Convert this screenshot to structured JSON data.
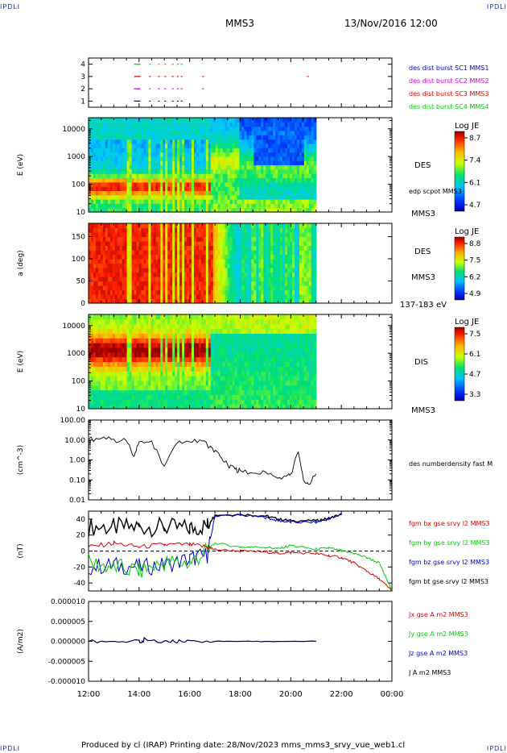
{
  "corner_marks": {
    "top_left": "IPDLI",
    "top_right": "IPDLI",
    "bottom_left": "IPDLI",
    "bottom_right": "IPDLI"
  },
  "header": {
    "spacecraft": "MMS3",
    "datetime": "13/Nov/2016 12:00"
  },
  "footer": {
    "text": "Produced by cl (IRAP)   Printing date: 28/Nov/2023   mms_mms3_srvy_vue_web1.cl"
  },
  "colors": {
    "blue": "#0000cc",
    "magenta": "#cc00cc",
    "red": "#dd0000",
    "green": "#00cc00",
    "black": "#000000"
  },
  "chart_data": [
    {
      "type": "scatter",
      "panel": "availability",
      "ylabel": "",
      "yticks": [
        "1",
        "2",
        "3",
        "4"
      ],
      "ylim": [
        0.5,
        4.5
      ],
      "legend": [
        {
          "name": "des dist burst SC1 MMS1",
          "color": "#0000cc"
        },
        {
          "name": "des dist burst SC2 MMS2",
          "color": "#cc00cc"
        },
        {
          "name": "des dist burst SC3 MMS3",
          "color": "#dd0000"
        },
        {
          "name": "des dist burst SC4 MMS4",
          "color": "#00cc00"
        }
      ],
      "series": [
        {
          "name": "des dist burst SC1 MMS1",
          "y": 1,
          "color": "#0000cc",
          "x": [
            13.8,
            13.95,
            14.4,
            14.75,
            15.0,
            15.3,
            15.5,
            15.65
          ]
        },
        {
          "name": "des dist burst SC2 MMS2",
          "y": 2,
          "color": "#cc00cc",
          "x": [
            13.8,
            13.95,
            14.4,
            14.75,
            15.0,
            15.3,
            15.5,
            15.65,
            16.5
          ]
        },
        {
          "name": "des dist burst SC3 MMS3",
          "y": 3,
          "color": "#dd0000",
          "x": [
            13.8,
            13.95,
            14.4,
            14.75,
            15.0,
            15.3,
            15.5,
            15.65,
            16.5,
            20.65
          ]
        },
        {
          "name": "des dist burst SC4 MMS4",
          "y": 4,
          "color": "#00cc00",
          "x": [
            13.8,
            13.95,
            14.4,
            14.75,
            15.0,
            15.3,
            15.5,
            15.65
          ]
        }
      ]
    },
    {
      "type": "heatmap",
      "panel": "des-energy",
      "ylabel": "E (eV)",
      "yticks": [
        "10",
        "100",
        "1000",
        "10000"
      ],
      "scale": "log",
      "side_labels": [
        "DES",
        "edp scpot MMS3",
        "MMS3"
      ],
      "colorbar": {
        "title": "Log JE",
        "ticks": [
          "8.7",
          "7.4",
          "6.1",
          "4.7"
        ]
      }
    },
    {
      "type": "heatmap",
      "panel": "des-pitch",
      "ylabel": "a (deg)",
      "yticks": [
        "0",
        "50",
        "100",
        "150"
      ],
      "ylim": [
        0,
        180
      ],
      "side_labels": [
        "DES",
        "MMS3",
        "137-183 eV"
      ],
      "colorbar": {
        "title": "Log JE",
        "ticks": [
          "8.8",
          "7.5",
          "6.2",
          "4.9"
        ]
      }
    },
    {
      "type": "heatmap",
      "panel": "dis-energy",
      "ylabel": "E (eV)",
      "yticks": [
        "10",
        "100",
        "1000",
        "10000"
      ],
      "scale": "log",
      "side_labels": [
        "DIS",
        "MMS3"
      ],
      "colorbar": {
        "title": "Log JE",
        "ticks": [
          "7.5",
          "6.1",
          "4.7",
          "3.3"
        ]
      }
    },
    {
      "type": "line",
      "panel": "density",
      "ylabel": "(cm^-3)",
      "yticks": [
        "0.01",
        "0.10",
        "1.00",
        "10.00",
        "100.00"
      ],
      "scale": "log",
      "legend": [
        {
          "name": "des numberdensity fast M",
          "color": "#000000"
        }
      ],
      "x": [
        12.0,
        12.5,
        13.0,
        13.5,
        13.8,
        14.0,
        14.5,
        15.0,
        15.5,
        16.0,
        16.5,
        16.9,
        17.2,
        17.5,
        17.8,
        18.0,
        18.5,
        19.0,
        19.5,
        19.8,
        20.0,
        20.3,
        20.5,
        20.7,
        21.0
      ],
      "y": [
        11,
        12,
        11,
        9,
        1.5,
        8,
        9,
        0.5,
        7,
        8,
        9,
        4,
        1.5,
        0.6,
        0.35,
        0.3,
        0.22,
        0.25,
        0.12,
        0.15,
        0.2,
        2.5,
        0.1,
        0.06,
        0.2
      ]
    },
    {
      "type": "line",
      "panel": "magnetic-field",
      "ylabel": "(nT)",
      "yticks": [
        "-40",
        "-20",
        "0",
        "20",
        "40"
      ],
      "ylim": [
        -50,
        50
      ],
      "legend": [
        {
          "name": "fgm bx gse srvy l2 MMS3",
          "color": "#dd0000"
        },
        {
          "name": "fgm by gse srvy l2 MMS3",
          "color": "#00cc00"
        },
        {
          "name": "fgm bz gse srvy l2 MMS3",
          "color": "#0000cc"
        },
        {
          "name": "fgm bt gse srvy l2 MMS3",
          "color": "#000000"
        }
      ],
      "x": [
        12.0,
        13.0,
        14.0,
        15.0,
        16.0,
        16.7,
        17.0,
        18.0,
        19.0,
        19.5,
        20.0,
        21.0,
        21.5,
        22.0,
        22.5,
        23.0,
        23.5,
        24.0
      ],
      "series": [
        {
          "name": "fgm bt gse srvy l2 MMS3",
          "values": [
            30,
            30,
            30,
            30,
            28,
            32,
            45,
            46,
            44,
            40,
            38,
            38,
            41,
            46,
            null,
            null,
            null,
            null
          ]
        },
        {
          "name": "fgm bz gse srvy l2 MMS3",
          "values": [
            -20,
            -18,
            -20,
            -18,
            -10,
            -5,
            44,
            45,
            42,
            38,
            36,
            36,
            40,
            46,
            null,
            null,
            null,
            null
          ]
        },
        {
          "name": "fgm by gse srvy l2 MMS3",
          "values": [
            -15,
            -20,
            -25,
            -15,
            -15,
            0,
            10,
            5,
            5,
            3,
            7,
            2,
            4,
            0,
            -3,
            -8,
            -15,
            -50
          ]
        },
        {
          "name": "fgm bx gse srvy l2 MMS3",
          "values": [
            5,
            10,
            5,
            8,
            8,
            5,
            2,
            0,
            -1,
            -3,
            -2,
            -3,
            -6,
            -8,
            -15,
            -25,
            -35,
            -50
          ]
        }
      ]
    },
    {
      "type": "line",
      "panel": "current-density",
      "ylabel": "(A/m2)",
      "yticks": [
        "-0.000010",
        "-0.000005",
        "0.000000",
        "0.000005",
        "0.000010"
      ],
      "ylim": [
        -1e-05,
        1e-05
      ],
      "xticks": [
        "12:00",
        "14:00",
        "16:00",
        "18:00",
        "20:00",
        "22:00",
        "00:00"
      ],
      "legend": [
        {
          "name": "Jx gse A m2 MMS3",
          "color": "#dd0000"
        },
        {
          "name": "Jy gse A m2 MMS3",
          "color": "#00cc00"
        },
        {
          "name": "Jz gse A m2 MMS3",
          "color": "#0000cc"
        },
        {
          "name": "J A m2 MMS3",
          "color": "#000000"
        }
      ],
      "x": [
        12.0,
        13.0,
        14.0,
        14.2,
        15.0,
        15.5,
        16.0,
        17.0,
        18.0,
        19.0,
        20.0,
        21.0
      ],
      "values": [
        0.0,
        0.0,
        3e-07,
        9e-07,
        1e-07,
        -4e-07,
        2e-07,
        0.0,
        0.0,
        0.0,
        0.0,
        0.0
      ]
    }
  ]
}
